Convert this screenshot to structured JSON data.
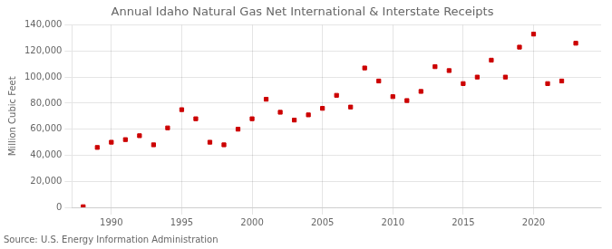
{
  "chart_data": {
    "type": "scatter",
    "title": "Annual Idaho Natural Gas Net International & Interstate Receipts",
    "ylabel": "Million Cubic Feet",
    "annotation": "Source: U.S. Energy Information Administration",
    "color": "#cc0000",
    "marker": "square",
    "x": [
      1988,
      1989,
      1990,
      1991,
      1992,
      1993,
      1994,
      1995,
      1996,
      1997,
      1998,
      1999,
      2000,
      2001,
      2002,
      2003,
      2004,
      2005,
      2006,
      2007,
      2008,
      2009,
      2010,
      2011,
      2012,
      2013,
      2014,
      2015,
      2016,
      2017,
      2018,
      2019,
      2020,
      2021,
      2022,
      2023
    ],
    "values": [
      500,
      46000,
      50000,
      52000,
      55000,
      48000,
      61000,
      75000,
      68000,
      50000,
      48000,
      60000,
      68000,
      83000,
      73000,
      67000,
      71000,
      76000,
      86000,
      77000,
      107000,
      97000,
      85000,
      82000,
      89000,
      108000,
      105000,
      95000,
      100000,
      113000,
      100000,
      123000,
      133000,
      95000,
      97000,
      126000
    ],
    "xlim": [
      1987.2,
      2024.8
    ],
    "xticks": [
      1990,
      1995,
      2000,
      2005,
      2010,
      2015,
      2020
    ],
    "ylim": [
      0,
      140000
    ],
    "yticks": [
      0,
      {
        "value": 20000,
        "label": "20,000"
      },
      {
        "value": 40000,
        "label": "40,000"
      },
      {
        "value": 60000,
        "label": "60,000"
      },
      {
        "value": 80000,
        "label": "80,000"
      },
      {
        "value": 100000,
        "label": "100,000"
      },
      {
        "value": 120000,
        "label": "120,000"
      },
      {
        "value": 140000,
        "label": "140,000"
      }
    ],
    "grid": true
  }
}
